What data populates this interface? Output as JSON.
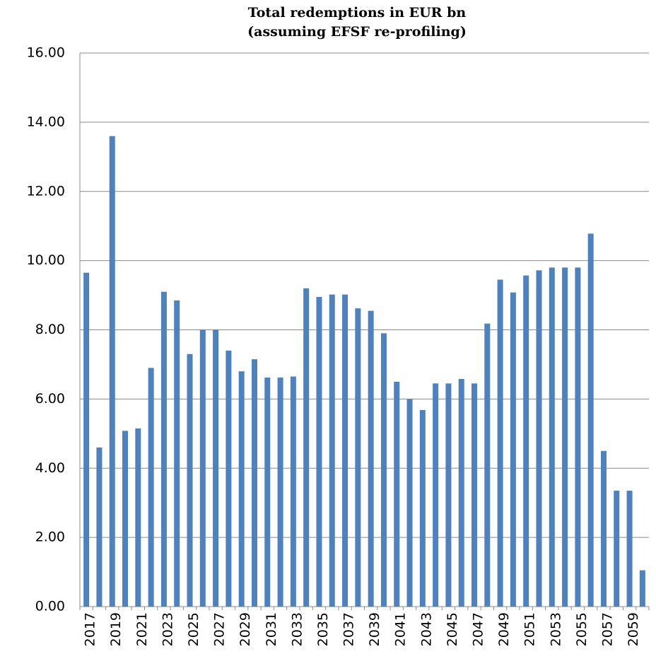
{
  "chart_data": {
    "type": "bar",
    "title": "Total redemptions in EUR bn",
    "subtitle": "(assuming EFSF re-profiling)",
    "categories": [
      "2017",
      null,
      "2019",
      null,
      "2021",
      null,
      "2023",
      null,
      "2025",
      null,
      "2027",
      null,
      "2029",
      null,
      "2031",
      null,
      "2033",
      null,
      "2035",
      null,
      "2037",
      null,
      "2039",
      null,
      "2041",
      null,
      "2043",
      null,
      "2045",
      null,
      "2047",
      null,
      "2049",
      null,
      "2051",
      null,
      "2053",
      null,
      "2055",
      null,
      "2057",
      null,
      "2059",
      null
    ],
    "values": [
      9.65,
      4.6,
      13.6,
      5.08,
      5.15,
      6.9,
      9.1,
      8.85,
      7.3,
      8.0,
      8.0,
      7.4,
      6.8,
      7.15,
      6.62,
      6.62,
      6.65,
      9.2,
      8.95,
      9.02,
      9.02,
      8.62,
      8.55,
      7.9,
      6.5,
      6.0,
      5.68,
      6.45,
      6.45,
      6.58,
      6.45,
      8.18,
      9.45,
      9.08,
      9.57,
      9.72,
      9.8,
      9.8,
      9.8,
      10.78,
      4.5,
      3.35,
      3.35,
      1.05
    ],
    "color": "#4f81bd",
    "ylim": [
      0,
      16
    ],
    "yticks": [
      {
        "value": 0,
        "label": "0.00"
      },
      {
        "value": 2,
        "label": "2.00"
      },
      {
        "value": 4,
        "label": "4.00"
      },
      {
        "value": 6,
        "label": "6.00"
      },
      {
        "value": 8,
        "label": "8.00"
      },
      {
        "value": 10,
        "label": "10.00"
      },
      {
        "value": 12,
        "label": "12.00"
      },
      {
        "value": 14,
        "label": "14.00"
      },
      {
        "value": 16,
        "label": "16.00"
      }
    ],
    "grid": true
  }
}
